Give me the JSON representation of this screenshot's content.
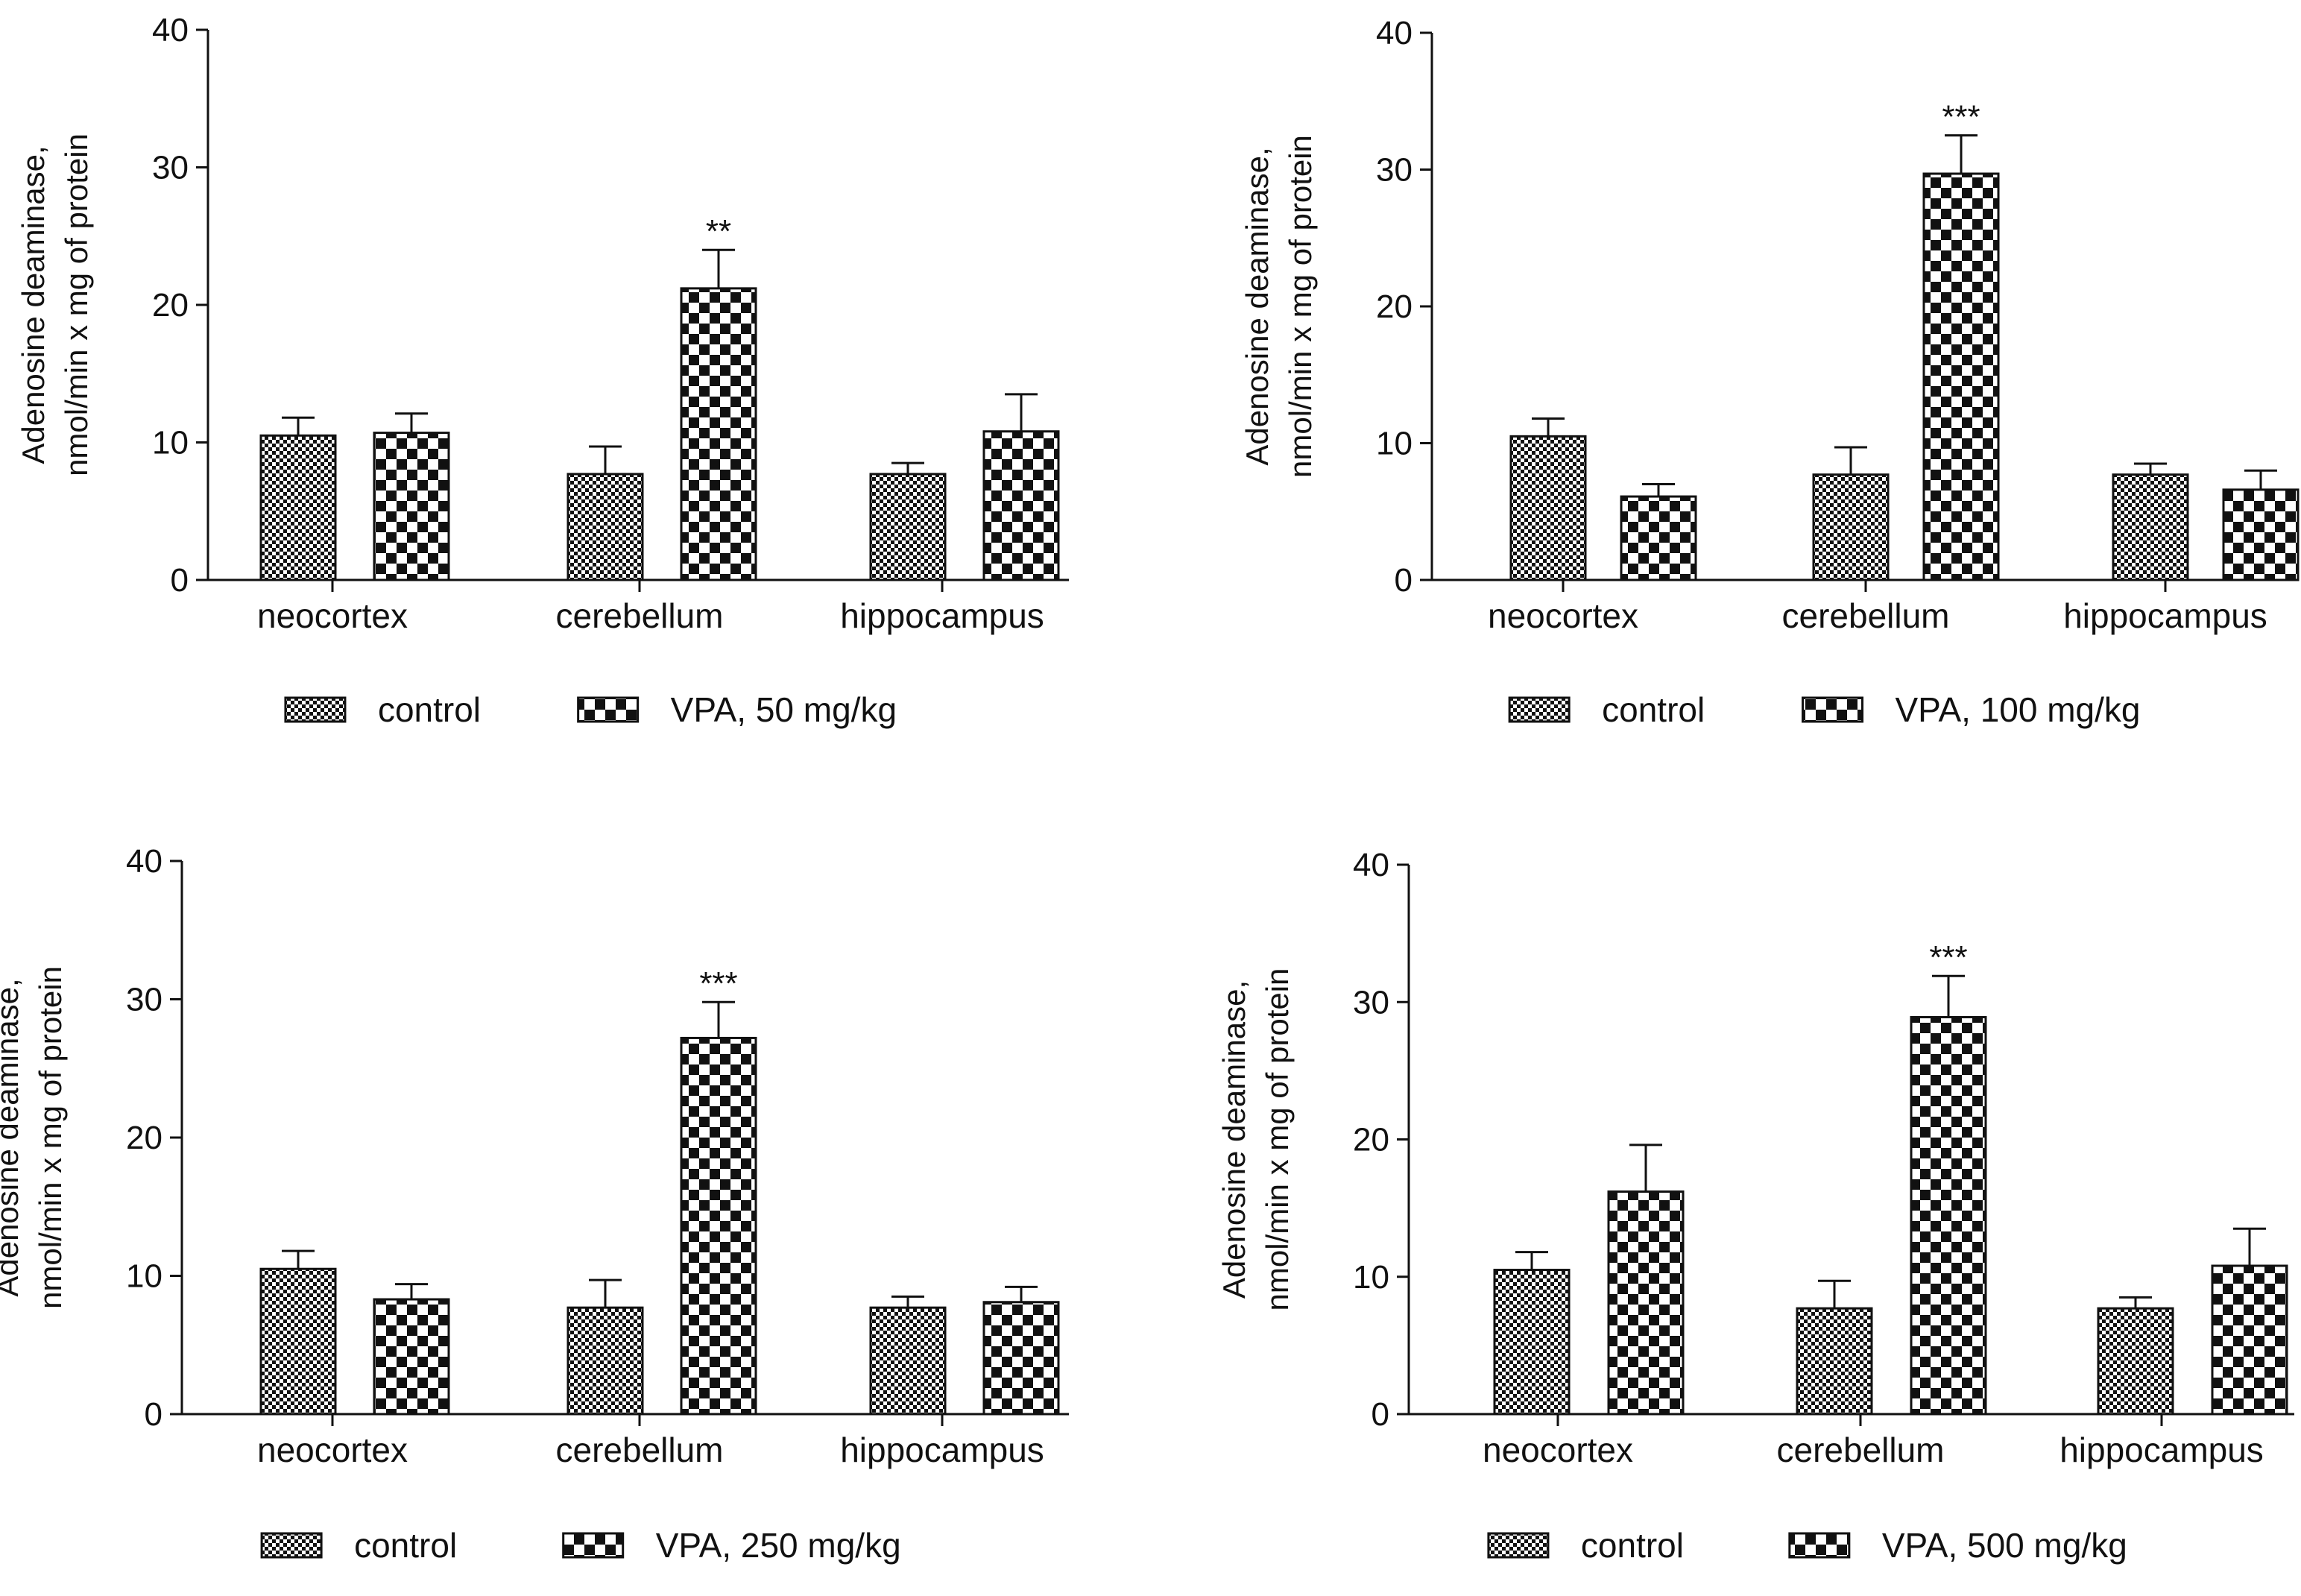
{
  "colors": {
    "ink": "#111111",
    "background": "#ffffff"
  },
  "chart_data": [
    {
      "type": "bar",
      "panel": "top-left",
      "categories": [
        "neocortex",
        "cerebellum",
        "hippocampus"
      ],
      "ylabel_lines": [
        "Adenosine deaminase,",
        "nmol/min x mg of protein"
      ],
      "ylim": [
        0,
        40
      ],
      "yticks": [
        0,
        10,
        20,
        30,
        40
      ],
      "series": [
        {
          "name": "control",
          "pattern": "fine-check",
          "values": [
            10.5,
            7.7,
            7.7
          ],
          "errors": [
            1.3,
            2.0,
            0.8
          ]
        },
        {
          "name": "VPA, 50 mg/kg",
          "pattern": "coarse-check",
          "values": [
            10.7,
            21.2,
            10.8
          ],
          "errors": [
            1.4,
            2.8,
            2.7
          ]
        }
      ],
      "annotations": [
        {
          "category": "cerebellum",
          "series": 1,
          "text": "**"
        }
      ],
      "legend": "bottom-center"
    },
    {
      "type": "bar",
      "panel": "top-right",
      "categories": [
        "neocortex",
        "cerebellum",
        "hippocampus"
      ],
      "ylabel_lines": [
        "Adenosine deaminase,",
        "nmol/min x mg of protein"
      ],
      "ylim": [
        0,
        40
      ],
      "yticks": [
        0,
        10,
        20,
        30,
        40
      ],
      "series": [
        {
          "name": "control",
          "pattern": "fine-check",
          "values": [
            10.5,
            7.7,
            7.7
          ],
          "errors": [
            1.3,
            2.0,
            0.8
          ]
        },
        {
          "name": "VPA, 100 mg/kg",
          "pattern": "coarse-check",
          "values": [
            6.1,
            29.7,
            6.6
          ],
          "errors": [
            0.9,
            2.8,
            1.4
          ]
        }
      ],
      "annotations": [
        {
          "category": "cerebellum",
          "series": 1,
          "text": "***"
        }
      ],
      "legend": "bottom-center"
    },
    {
      "type": "bar",
      "panel": "bottom-left",
      "categories": [
        "neocortex",
        "cerebellum",
        "hippocampus"
      ],
      "ylabel_lines": [
        "Adenosine deaminase,",
        "nmol/min x mg of protein"
      ],
      "ylim": [
        0,
        40
      ],
      "yticks": [
        0,
        10,
        20,
        30,
        40
      ],
      "series": [
        {
          "name": "control",
          "pattern": "fine-check",
          "values": [
            10.5,
            7.7,
            7.7
          ],
          "errors": [
            1.3,
            2.0,
            0.8
          ]
        },
        {
          "name": "VPA, 250 mg/kg",
          "pattern": "coarse-check",
          "values": [
            8.3,
            27.2,
            8.1
          ],
          "errors": [
            1.1,
            2.6,
            1.1
          ]
        }
      ],
      "annotations": [
        {
          "category": "cerebellum",
          "series": 1,
          "text": "***"
        }
      ],
      "legend": "bottom-center"
    },
    {
      "type": "bar",
      "panel": "bottom-right",
      "categories": [
        "neocortex",
        "cerebellum",
        "hippocampus"
      ],
      "ylabel_lines": [
        "Adenosine deaminase,",
        "nmol/min x mg of protein"
      ],
      "ylim": [
        0,
        40
      ],
      "yticks": [
        0,
        10,
        20,
        30,
        40
      ],
      "series": [
        {
          "name": "control",
          "pattern": "fine-check",
          "values": [
            10.5,
            7.7,
            7.7
          ],
          "errors": [
            1.3,
            2.0,
            0.8
          ]
        },
        {
          "name": "VPA, 500 mg/kg",
          "pattern": "coarse-check",
          "values": [
            16.2,
            28.9,
            10.8
          ],
          "errors": [
            3.4,
            3.0,
            2.7
          ]
        }
      ],
      "annotations": [
        {
          "category": "cerebellum",
          "series": 1,
          "text": "***"
        }
      ],
      "legend": "bottom-center"
    }
  ]
}
